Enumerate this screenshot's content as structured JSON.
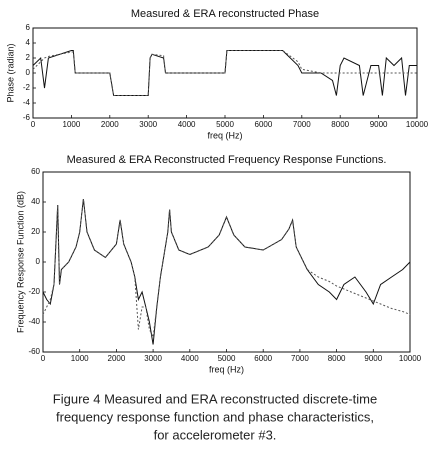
{
  "chart_data": [
    {
      "type": "line",
      "title": "Measured & ERA reconstructed Phase",
      "xlabel": "freq (Hz)",
      "ylabel": "Phase (radian)",
      "x": [
        0,
        200,
        300,
        400,
        1000,
        1050,
        1100,
        2000,
        2100,
        2200,
        3000,
        3050,
        3100,
        3400,
        3450,
        3500,
        5000,
        5050,
        6500,
        6900,
        7000,
        7500,
        7800,
        7900,
        8000,
        8100,
        8500,
        8600,
        8800,
        9000,
        9100,
        9200,
        9400,
        9600,
        9700,
        9800,
        10000
      ],
      "series": [
        {
          "color": "#111111",
          "dash": false,
          "values": [
            1,
            2,
            -2,
            2,
            3,
            3,
            0,
            0,
            -3,
            -3,
            -3,
            2,
            2.5,
            2,
            0,
            0,
            0,
            3,
            3,
            1,
            0,
            0,
            -1,
            -3,
            1,
            2,
            1,
            -3,
            1,
            1,
            -3,
            2,
            1,
            2,
            -3,
            1,
            1
          ]
        },
        {
          "color": "#555555",
          "dash": true,
          "values": [
            0.5,
            1.5,
            2,
            2.2,
            2.8,
            2.8,
            0,
            0,
            -3,
            -3,
            -3,
            2,
            2.5,
            2.3,
            0,
            0,
            0,
            3,
            3,
            1.5,
            0.5,
            0,
            0,
            0,
            0,
            0,
            0,
            0,
            0,
            0,
            0,
            0,
            0,
            0,
            0,
            0,
            0
          ]
        }
      ],
      "xlim": [
        0,
        10000
      ],
      "xticks": [
        0,
        1000,
        2000,
        3000,
        4000,
        5000,
        6000,
        7000,
        8000,
        9000,
        10000
      ],
      "ylim": [
        -6,
        6
      ],
      "yticks": [
        -6,
        -4,
        -2,
        0,
        2,
        4,
        6
      ]
    },
    {
      "type": "line",
      "title": "Measured & ERA Reconstructed Frequency Response Functions.",
      "xlabel": "freq (Hz)",
      "ylabel": "Frequency Response  Function (dB)",
      "x": [
        0,
        100,
        200,
        300,
        400,
        450,
        500,
        700,
        900,
        1000,
        1100,
        1200,
        1400,
        1700,
        2000,
        2100,
        2200,
        2400,
        2500,
        2600,
        2700,
        2800,
        2900,
        3000,
        3100,
        3200,
        3300,
        3400,
        3450,
        3500,
        3700,
        4000,
        4500,
        4800,
        5000,
        5200,
        5500,
        6000,
        6500,
        6700,
        6800,
        6900,
        7200,
        7500,
        7800,
        8000,
        8200,
        8500,
        8800,
        9000,
        9200,
        9500,
        9800,
        10000
      ],
      "series": [
        {
          "color": "#111111",
          "dash": false,
          "values": [
            -20,
            -25,
            -28,
            -15,
            38,
            -15,
            -5,
            0,
            10,
            20,
            42,
            20,
            8,
            3,
            12,
            28,
            12,
            0,
            -10,
            -25,
            -20,
            -30,
            -40,
            -55,
            -30,
            -10,
            5,
            20,
            35,
            20,
            8,
            5,
            10,
            18,
            30,
            18,
            10,
            8,
            15,
            22,
            28,
            10,
            -5,
            -15,
            -20,
            -25,
            -15,
            -10,
            -20,
            -28,
            -15,
            -10,
            -5,
            0
          ]
        },
        {
          "color": "#555555",
          "dash": true,
          "values": [
            -35,
            -30,
            -25,
            -15,
            38,
            -15,
            -5,
            0,
            10,
            20,
            42,
            20,
            8,
            3,
            12,
            28,
            12,
            0,
            -10,
            -45,
            -30,
            -30,
            -45,
            -50,
            -30,
            -10,
            5,
            20,
            35,
            20,
            8,
            5,
            10,
            18,
            30,
            18,
            10,
            8,
            15,
            22,
            28,
            10,
            -5,
            -10,
            -13,
            -16,
            -18,
            -21,
            -24,
            -26,
            -28,
            -31,
            -33,
            -35
          ]
        }
      ],
      "xlim": [
        0,
        10000
      ],
      "xticks": [
        0,
        1000,
        2000,
        3000,
        4000,
        5000,
        6000,
        7000,
        8000,
        9000,
        10000
      ],
      "ylim": [
        -60,
        60
      ],
      "yticks": [
        -60,
        -40,
        -20,
        0,
        20,
        40,
        60
      ]
    }
  ],
  "caption": [
    "Figure 4  Measured and ERA reconstructed discrete-time",
    "frequency response function and phase characteristics,",
    "for accelerometer #3."
  ]
}
